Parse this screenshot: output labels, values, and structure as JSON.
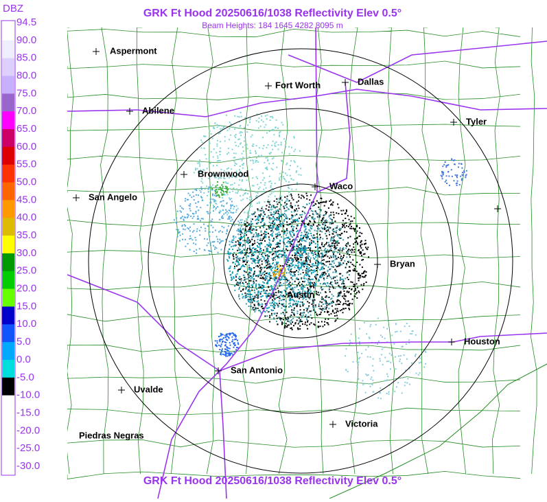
{
  "header": {
    "title": "GRK Ft Hood 20250616/1038 Reflectivity Elev 0.5°",
    "subtitle": "Beam Heights: 184 1645 4282 8095 m",
    "footer_title": "GRK Ft Hood 20250616/1038 Reflectivity Elev 0.5°"
  },
  "legend": {
    "unit": "DBZ",
    "labels": [
      "94.5",
      "90.0",
      "85.0",
      "80.0",
      "75.0",
      "70.0",
      "65.0",
      "60.0",
      "55.0",
      "50.0",
      "45.0",
      "40.0",
      "35.0",
      "30.0",
      "25.0",
      "20.0",
      "15.0",
      "10.0",
      "5.0",
      "0.0",
      "-5.0",
      "-10.0",
      "-15.0",
      "-20.0",
      "-25.0",
      "-30.0"
    ]
  },
  "cities": [
    {
      "label": "Aspermont"
    },
    {
      "label": "Fort Worth"
    },
    {
      "label": "Dallas"
    },
    {
      "label": "Abilene"
    },
    {
      "label": "Tyler"
    },
    {
      "label": "Brownwood"
    },
    {
      "label": "Waco"
    },
    {
      "label": "San Angelo"
    },
    {
      "label": "Bryan"
    },
    {
      "label": "Austin"
    },
    {
      "label": "Houston"
    },
    {
      "label": "San Antonio"
    },
    {
      "label": "Uvalde"
    },
    {
      "label": "Victoria"
    },
    {
      "label": "Piedras Negras"
    }
  ]
}
